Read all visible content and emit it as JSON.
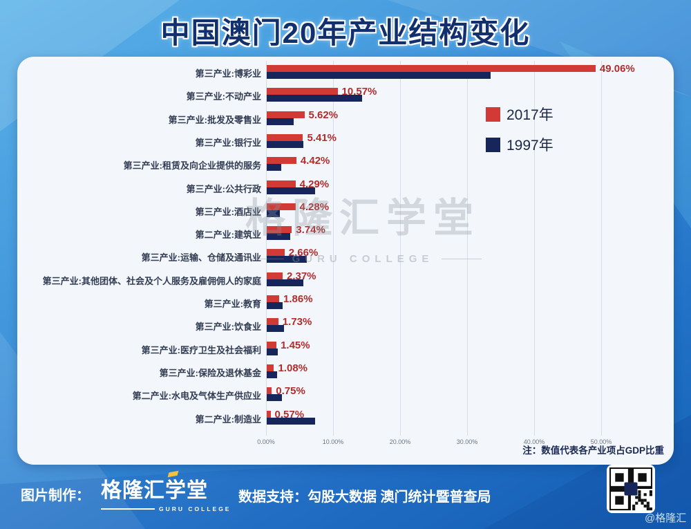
{
  "title": "中国澳门20年产业结构变化",
  "chart_data": {
    "type": "bar",
    "orientation": "horizontal",
    "title": "中国澳门20年产业结构变化",
    "categories": [
      "第三产业:博彩业",
      "第三产业:不动产业",
      "第三产业:批发及零售业",
      "第三产业:银行业",
      "第三产业:租赁及向企业提供的服务",
      "第三产业:公共行政",
      "第三产业:酒店业",
      "第二产业:建筑业",
      "第三产业:运输、仓储及通讯业",
      "第三产业:其他团体、社会及个人服务及雇佣佣人的家庭",
      "第三产业:教育",
      "第三产业:饮食业",
      "第三产业:医疗卫生及社会福利",
      "第三产业:保险及退休基金",
      "第二产业:水电及气体生产供应业",
      "第二产业:制造业"
    ],
    "series": [
      {
        "name": "2017年",
        "color": "#d23b35",
        "values": [
          49.06,
          10.57,
          5.62,
          5.41,
          4.42,
          4.29,
          4.28,
          3.74,
          2.66,
          2.37,
          1.86,
          1.73,
          1.45,
          1.08,
          0.75,
          0.57
        ],
        "value_labels": [
          "49.06%",
          "10.57%",
          "5.62%",
          "5.41%",
          "4.42%",
          "4.29%",
          "4.28%",
          "3.74%",
          "2.66%",
          "2.37%",
          "1.86%",
          "1.73%",
          "1.45%",
          "1.08%",
          "0.75%",
          "0.57%"
        ]
      },
      {
        "name": "1997年",
        "color": "#16265a",
        "values_estimated": true,
        "values": [
          33.4,
          14.2,
          4.0,
          5.5,
          2.2,
          7.2,
          2.0,
          3.5,
          6.0,
          5.5,
          2.4,
          2.6,
          1.7,
          1.5,
          2.3,
          7.2
        ]
      }
    ],
    "xticks": [
      "0.00%",
      "10.00%",
      "20.00%",
      "30.00%",
      "40.00%",
      "50.00%"
    ],
    "xlim": [
      0,
      55
    ],
    "grid": true,
    "legend_position": "upper right",
    "note": "注：数值代表各产业项占GDP比重",
    "value_label_color": "#b22c2c"
  },
  "watermark": {
    "title": "格隆汇学堂",
    "subtitle": "GURU COLLEGE"
  },
  "footer": {
    "made_by": "图片制作：",
    "logo": "格隆汇学堂",
    "logo_sub": "GURU COLLEGE",
    "support": "数据支持：勾股大数据  澳门统计暨普查局",
    "handle": "@格隆汇"
  },
  "colors": {
    "bar_2017": "#d23b35",
    "bar_1997": "#16265a",
    "panel": "#f3f7fb",
    "background_top": "#5ab2e8",
    "background_bottom": "#1261b4"
  }
}
